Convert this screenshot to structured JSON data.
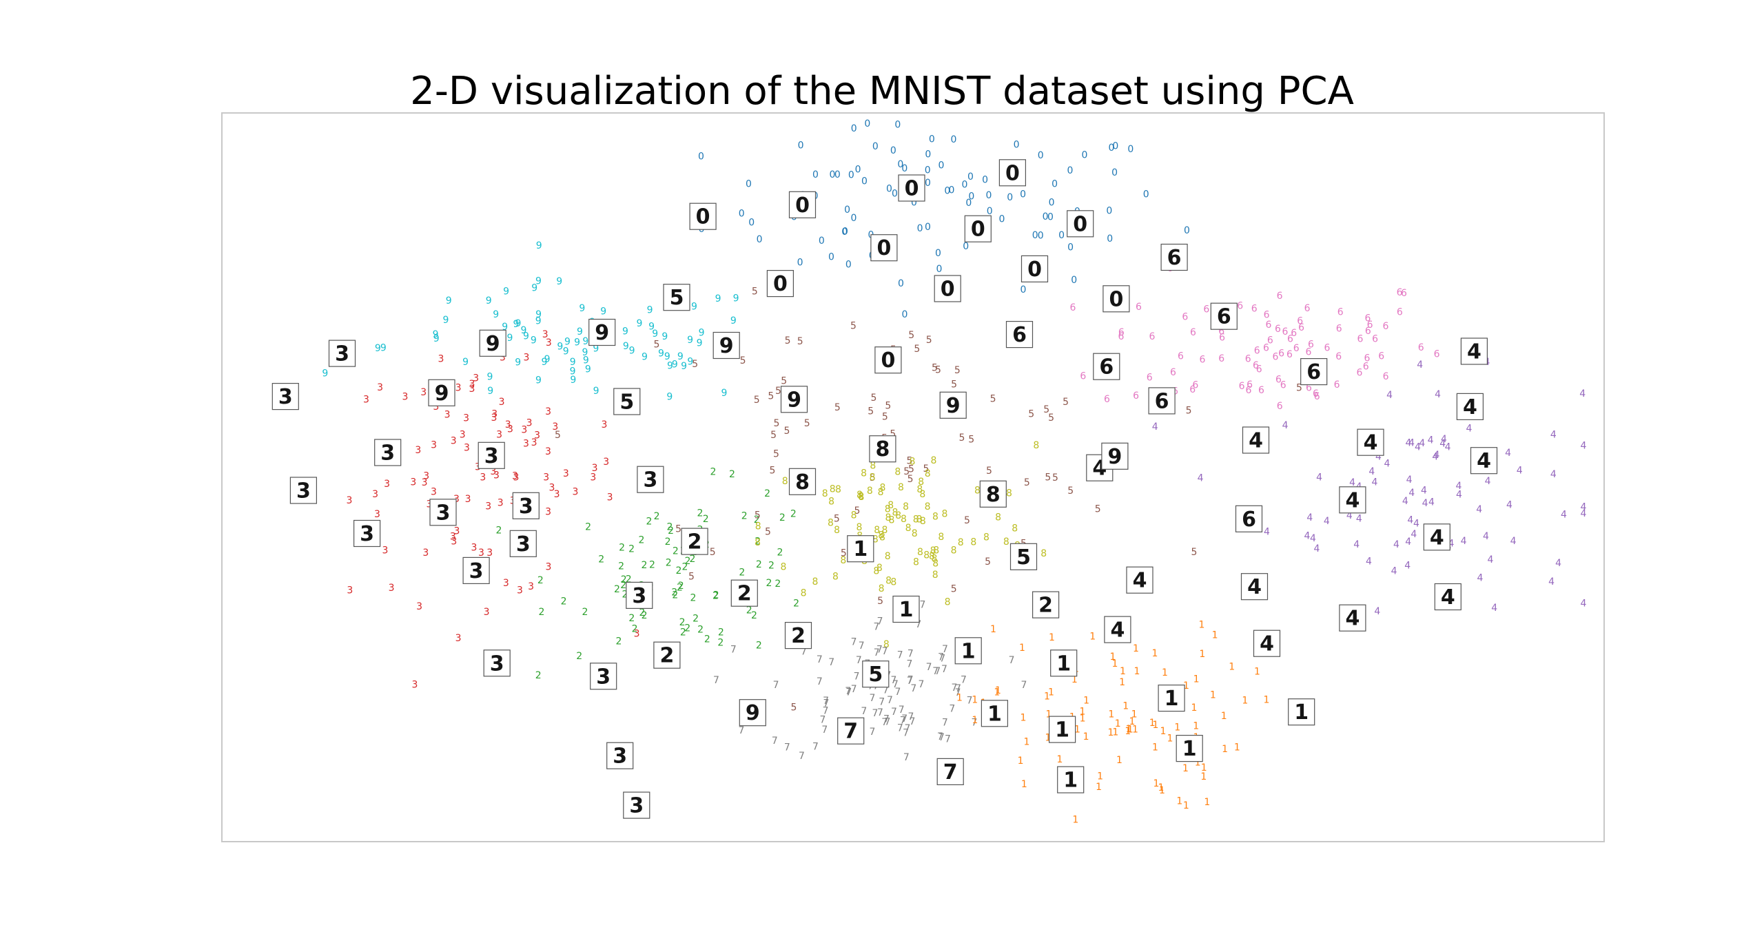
{
  "chart_data": {
    "type": "scatter",
    "title": "2-D visualization of the MNIST dataset using PCA",
    "xlabel": "",
    "ylabel": "",
    "axes_ticks_visible": false,
    "grid": false,
    "xlim": [
      0,
      1
    ],
    "ylim": [
      0,
      1
    ],
    "class_colors": {
      "0": "#1f77b4",
      "1": "#ff7f0e",
      "2": "#2ca02c",
      "3": "#d62728",
      "4": "#9467bd",
      "5": "#8c564b",
      "6": "#e377c2",
      "7": "#7f7f7f",
      "8": "#bcbd22",
      "9": "#17becf"
    },
    "clusters": [
      {
        "label": "0",
        "center": [
          0.52,
          0.87
        ],
        "spread": [
          0.12,
          0.08
        ],
        "count": 95
      },
      {
        "label": "6",
        "center": [
          0.76,
          0.68
        ],
        "spread": [
          0.09,
          0.07
        ],
        "count": 80
      },
      {
        "label": "4",
        "center": [
          0.87,
          0.48
        ],
        "spread": [
          0.08,
          0.11
        ],
        "count": 80
      },
      {
        "label": "3",
        "center": [
          0.19,
          0.5
        ],
        "spread": [
          0.07,
          0.12
        ],
        "count": 90
      },
      {
        "label": "9",
        "center": [
          0.26,
          0.68
        ],
        "spread": [
          0.1,
          0.06
        ],
        "count": 75
      },
      {
        "label": "2",
        "center": [
          0.34,
          0.37
        ],
        "spread": [
          0.07,
          0.08
        ],
        "count": 80
      },
      {
        "label": "5",
        "center": [
          0.47,
          0.55
        ],
        "spread": [
          0.14,
          0.13
        ],
        "count": 70
      },
      {
        "label": "8",
        "center": [
          0.49,
          0.43
        ],
        "spread": [
          0.07,
          0.08
        ],
        "count": 90
      },
      {
        "label": "7",
        "center": [
          0.48,
          0.21
        ],
        "spread": [
          0.06,
          0.07
        ],
        "count": 95
      },
      {
        "label": "1",
        "center": [
          0.64,
          0.17
        ],
        "spread": [
          0.07,
          0.09
        ],
        "count": 90
      }
    ],
    "thumbnails": [
      {
        "digit": "0",
        "x": 0.348,
        "y": 0.858
      },
      {
        "digit": "0",
        "x": 0.42,
        "y": 0.874
      },
      {
        "digit": "0",
        "x": 0.499,
        "y": 0.897
      },
      {
        "digit": "0",
        "x": 0.572,
        "y": 0.918
      },
      {
        "digit": "0",
        "x": 0.621,
        "y": 0.848
      },
      {
        "digit": "0",
        "x": 0.547,
        "y": 0.841
      },
      {
        "digit": "0",
        "x": 0.479,
        "y": 0.815
      },
      {
        "digit": "0",
        "x": 0.588,
        "y": 0.786
      },
      {
        "digit": "0",
        "x": 0.525,
        "y": 0.759
      },
      {
        "digit": "0",
        "x": 0.404,
        "y": 0.766
      },
      {
        "digit": "0",
        "x": 0.647,
        "y": 0.745
      },
      {
        "digit": "0",
        "x": 0.482,
        "y": 0.661
      },
      {
        "digit": "6",
        "x": 0.577,
        "y": 0.696
      },
      {
        "digit": "6",
        "x": 0.689,
        "y": 0.802
      },
      {
        "digit": "6",
        "x": 0.725,
        "y": 0.721
      },
      {
        "digit": "6",
        "x": 0.64,
        "y": 0.652
      },
      {
        "digit": "6",
        "x": 0.79,
        "y": 0.645
      },
      {
        "digit": "6",
        "x": 0.68,
        "y": 0.605
      },
      {
        "digit": "6",
        "x": 0.743,
        "y": 0.443
      },
      {
        "digit": "4",
        "x": 0.906,
        "y": 0.673
      },
      {
        "digit": "4",
        "x": 0.903,
        "y": 0.597
      },
      {
        "digit": "4",
        "x": 0.913,
        "y": 0.523
      },
      {
        "digit": "4",
        "x": 0.831,
        "y": 0.548
      },
      {
        "digit": "4",
        "x": 0.748,
        "y": 0.551
      },
      {
        "digit": "4",
        "x": 0.818,
        "y": 0.469
      },
      {
        "digit": "4",
        "x": 0.879,
        "y": 0.418
      },
      {
        "digit": "4",
        "x": 0.747,
        "y": 0.35
      },
      {
        "digit": "4",
        "x": 0.664,
        "y": 0.359
      },
      {
        "digit": "4",
        "x": 0.818,
        "y": 0.307
      },
      {
        "digit": "4",
        "x": 0.887,
        "y": 0.336
      },
      {
        "digit": "4",
        "x": 0.756,
        "y": 0.272
      },
      {
        "digit": "4",
        "x": 0.648,
        "y": 0.291
      },
      {
        "digit": "4",
        "x": 0.635,
        "y": 0.513
      },
      {
        "digit": "3",
        "x": 0.087,
        "y": 0.67
      },
      {
        "digit": "3",
        "x": 0.046,
        "y": 0.611
      },
      {
        "digit": "3",
        "x": 0.12,
        "y": 0.534
      },
      {
        "digit": "3",
        "x": 0.195,
        "y": 0.53
      },
      {
        "digit": "3",
        "x": 0.059,
        "y": 0.482
      },
      {
        "digit": "3",
        "x": 0.16,
        "y": 0.452
      },
      {
        "digit": "3",
        "x": 0.22,
        "y": 0.461
      },
      {
        "digit": "3",
        "x": 0.218,
        "y": 0.409
      },
      {
        "digit": "3",
        "x": 0.184,
        "y": 0.372
      },
      {
        "digit": "3",
        "x": 0.105,
        "y": 0.423
      },
      {
        "digit": "3",
        "x": 0.31,
        "y": 0.497
      },
      {
        "digit": "3",
        "x": 0.302,
        "y": 0.338
      },
      {
        "digit": "3",
        "x": 0.276,
        "y": 0.227
      },
      {
        "digit": "3",
        "x": 0.199,
        "y": 0.245
      },
      {
        "digit": "3",
        "x": 0.288,
        "y": 0.118
      },
      {
        "digit": "3",
        "x": 0.3,
        "y": 0.05
      },
      {
        "digit": "9",
        "x": 0.196,
        "y": 0.684
      },
      {
        "digit": "9",
        "x": 0.275,
        "y": 0.699
      },
      {
        "digit": "9",
        "x": 0.365,
        "y": 0.681
      },
      {
        "digit": "9",
        "x": 0.159,
        "y": 0.616
      },
      {
        "digit": "9",
        "x": 0.414,
        "y": 0.607
      },
      {
        "digit": "9",
        "x": 0.529,
        "y": 0.599
      },
      {
        "digit": "9",
        "x": 0.646,
        "y": 0.529
      },
      {
        "digit": "9",
        "x": 0.384,
        "y": 0.177
      },
      {
        "digit": "5",
        "x": 0.329,
        "y": 0.747
      },
      {
        "digit": "5",
        "x": 0.293,
        "y": 0.604
      },
      {
        "digit": "5",
        "x": 0.58,
        "y": 0.391
      },
      {
        "digit": "5",
        "x": 0.473,
        "y": 0.23
      },
      {
        "digit": "8",
        "x": 0.478,
        "y": 0.539
      },
      {
        "digit": "8",
        "x": 0.42,
        "y": 0.494
      },
      {
        "digit": "8",
        "x": 0.558,
        "y": 0.477
      },
      {
        "digit": "2",
        "x": 0.342,
        "y": 0.412
      },
      {
        "digit": "2",
        "x": 0.378,
        "y": 0.341
      },
      {
        "digit": "2",
        "x": 0.322,
        "y": 0.256
      },
      {
        "digit": "2",
        "x": 0.417,
        "y": 0.283
      },
      {
        "digit": "2",
        "x": 0.596,
        "y": 0.325
      },
      {
        "digit": "1",
        "x": 0.462,
        "y": 0.402
      },
      {
        "digit": "1",
        "x": 0.495,
        "y": 0.319
      },
      {
        "digit": "1",
        "x": 0.54,
        "y": 0.262
      },
      {
        "digit": "1",
        "x": 0.609,
        "y": 0.245
      },
      {
        "digit": "1",
        "x": 0.687,
        "y": 0.197
      },
      {
        "digit": "1",
        "x": 0.559,
        "y": 0.176
      },
      {
        "digit": "1",
        "x": 0.608,
        "y": 0.154
      },
      {
        "digit": "1",
        "x": 0.781,
        "y": 0.178
      },
      {
        "digit": "1",
        "x": 0.7,
        "y": 0.128
      },
      {
        "digit": "1",
        "x": 0.614,
        "y": 0.085
      },
      {
        "digit": "7",
        "x": 0.455,
        "y": 0.152
      },
      {
        "digit": "7",
        "x": 0.527,
        "y": 0.096
      }
    ]
  }
}
